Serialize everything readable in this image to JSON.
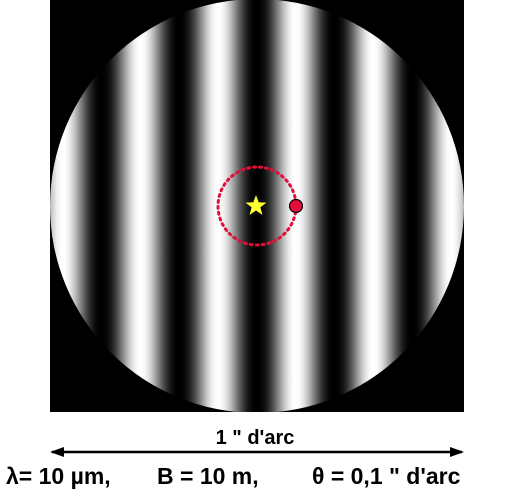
{
  "figure": {
    "scale_label": "1 \" d'arc",
    "params": {
      "wavelength": "λ= 10 µm,",
      "baseline": "B = 10 m,",
      "separation": "θ = 0,1 \" d'arc"
    },
    "markers": {
      "star_icon": "yellow-star-icon",
      "companion_icon": "red-dot-icon"
    },
    "fringes": {
      "count_across_field": 5.33,
      "dark_fringe_on_star": true
    },
    "colors": {
      "background": "#000000",
      "fringe_bright": "#ffffff",
      "fringe_dark": "#000000",
      "star": "#ffff33",
      "companion": "#e0103a",
      "separation_circle": "#e0103a",
      "arrow": "#000000",
      "text": "#000000"
    }
  }
}
